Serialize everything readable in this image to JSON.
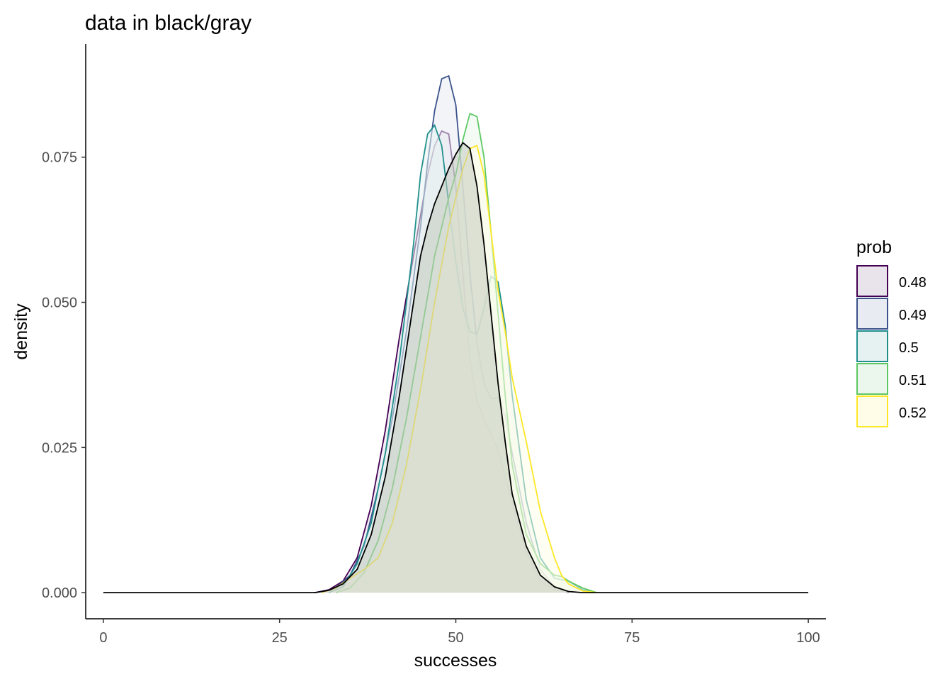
{
  "chart_data": {
    "type": "area",
    "title": "data in black/gray",
    "xlabel": "successes",
    "ylabel": "density",
    "xlim": [
      -2.5,
      102.5
    ],
    "ylim": [
      -0.0045,
      0.0945
    ],
    "x_ticks": [
      0,
      25,
      50,
      75,
      100
    ],
    "x_tick_labels": [
      "0",
      "25",
      "50",
      "75",
      "100"
    ],
    "y_ticks": [
      0,
      0.025,
      0.05,
      0.075
    ],
    "y_tick_labels": [
      "0.000",
      "0.025",
      "0.050",
      "0.075"
    ],
    "grid": false,
    "legend": {
      "title": "prob",
      "placement": "right",
      "entries": [
        "0.48",
        "0.49",
        "0.5",
        "0.51",
        "0.52"
      ]
    },
    "series": [
      {
        "name": "0.48",
        "color": "#440154",
        "fill": "#e9e4ec",
        "points": [
          [
            30,
            0
          ],
          [
            32,
            0.0005
          ],
          [
            34,
            0.002
          ],
          [
            36,
            0.006
          ],
          [
            38,
            0.015
          ],
          [
            40,
            0.028
          ],
          [
            42,
            0.044
          ],
          [
            44,
            0.058
          ],
          [
            46,
            0.072
          ],
          [
            47,
            0.077
          ],
          [
            48,
            0.0795
          ],
          [
            49,
            0.079
          ],
          [
            50,
            0.07
          ],
          [
            51,
            0.055
          ],
          [
            52,
            0.04
          ],
          [
            53,
            0.033
          ],
          [
            54,
            0.03
          ],
          [
            56,
            0.0245
          ],
          [
            58,
            0.0155
          ],
          [
            60,
            0.007
          ],
          [
            62,
            0.002
          ],
          [
            64,
            0.0005
          ],
          [
            66,
            0
          ]
        ]
      },
      {
        "name": "0.49",
        "color": "#3b528b",
        "fill": "#e8ebf2",
        "points": [
          [
            31,
            0
          ],
          [
            33,
            0.0008
          ],
          [
            35,
            0.003
          ],
          [
            37,
            0.008
          ],
          [
            39,
            0.018
          ],
          [
            41,
            0.03
          ],
          [
            43,
            0.045
          ],
          [
            45,
            0.063
          ],
          [
            46,
            0.074
          ],
          [
            47,
            0.083
          ],
          [
            48,
            0.0885
          ],
          [
            49,
            0.089
          ],
          [
            50,
            0.084
          ],
          [
            51,
            0.07
          ],
          [
            52,
            0.055
          ],
          [
            53,
            0.043
          ],
          [
            54,
            0.036
          ],
          [
            55,
            0.0335
          ],
          [
            56,
            0.0335
          ],
          [
            57,
            0.0305
          ],
          [
            58,
            0.024
          ],
          [
            60,
            0.012
          ],
          [
            62,
            0.004
          ],
          [
            64,
            0.001
          ],
          [
            66,
            0
          ]
        ]
      },
      {
        "name": "0.5",
        "color": "#21908d",
        "fill": "#e6f2f1",
        "points": [
          [
            32,
            0
          ],
          [
            34,
            0.001
          ],
          [
            36,
            0.005
          ],
          [
            38,
            0.012
          ],
          [
            40,
            0.024
          ],
          [
            42,
            0.04
          ],
          [
            44,
            0.06
          ],
          [
            45,
            0.072
          ],
          [
            46,
            0.079
          ],
          [
            47,
            0.0805
          ],
          [
            48,
            0.077
          ],
          [
            49,
            0.067
          ],
          [
            50,
            0.057
          ],
          [
            51,
            0.049
          ],
          [
            52,
            0.045
          ],
          [
            53,
            0.0445
          ],
          [
            54,
            0.049
          ],
          [
            55,
            0.0545
          ],
          [
            56,
            0.0535
          ],
          [
            57,
            0.046
          ],
          [
            58,
            0.034
          ],
          [
            60,
            0.016
          ],
          [
            62,
            0.006
          ],
          [
            64,
            0.0025
          ],
          [
            66,
            0.002
          ],
          [
            68,
            0.0005
          ],
          [
            70,
            0
          ]
        ]
      },
      {
        "name": "0.51",
        "color": "#5dc863",
        "fill": "#ebf7ec",
        "points": [
          [
            33,
            0
          ],
          [
            35,
            0.0008
          ],
          [
            37,
            0.0035
          ],
          [
            39,
            0.009
          ],
          [
            41,
            0.018
          ],
          [
            43,
            0.03
          ],
          [
            45,
            0.044
          ],
          [
            47,
            0.058
          ],
          [
            49,
            0.068
          ],
          [
            50,
            0.072
          ],
          [
            51,
            0.078
          ],
          [
            52,
            0.0825
          ],
          [
            53,
            0.082
          ],
          [
            54,
            0.075
          ],
          [
            55,
            0.062
          ],
          [
            56,
            0.048
          ],
          [
            57,
            0.034
          ],
          [
            58,
            0.022
          ],
          [
            60,
            0.01
          ],
          [
            62,
            0.005
          ],
          [
            64,
            0.003
          ],
          [
            65,
            0.0028
          ],
          [
            66,
            0.002
          ],
          [
            68,
            0.0008
          ],
          [
            70,
            0
          ]
        ]
      },
      {
        "name": "0.52",
        "color": "#fde725",
        "fill": "#fffde8",
        "points": [
          [
            31,
            0
          ],
          [
            33,
            0.0008
          ],
          [
            35,
            0.0025
          ],
          [
            37,
            0.004
          ],
          [
            39,
            0.006
          ],
          [
            41,
            0.012
          ],
          [
            43,
            0.022
          ],
          [
            45,
            0.035
          ],
          [
            47,
            0.05
          ],
          [
            49,
            0.063
          ],
          [
            51,
            0.073
          ],
          [
            52,
            0.0765
          ],
          [
            53,
            0.077
          ],
          [
            54,
            0.072
          ],
          [
            55,
            0.062
          ],
          [
            56,
            0.052
          ],
          [
            57,
            0.045
          ],
          [
            58,
            0.037
          ],
          [
            60,
            0.026
          ],
          [
            62,
            0.014
          ],
          [
            64,
            0.006
          ],
          [
            65,
            0.003
          ],
          [
            66,
            0.0015
          ],
          [
            68,
            0.0003
          ],
          [
            70,
            0
          ]
        ]
      },
      {
        "name": "",
        "color": "#000000",
        "fill": "#c2cbbd",
        "points": [
          [
            0,
            0
          ],
          [
            30,
            0
          ],
          [
            32,
            0.0004
          ],
          [
            34,
            0.0015
          ],
          [
            36,
            0.004
          ],
          [
            38,
            0.01
          ],
          [
            40,
            0.02
          ],
          [
            42,
            0.034
          ],
          [
            44,
            0.05
          ],
          [
            45,
            0.058
          ],
          [
            46,
            0.063
          ],
          [
            47,
            0.067
          ],
          [
            48,
            0.07
          ],
          [
            49,
            0.073
          ],
          [
            50,
            0.0755
          ],
          [
            51,
            0.0775
          ],
          [
            52,
            0.0765
          ],
          [
            53,
            0.07
          ],
          [
            54,
            0.06
          ],
          [
            55,
            0.048
          ],
          [
            56,
            0.036
          ],
          [
            57,
            0.026
          ],
          [
            58,
            0.017
          ],
          [
            60,
            0.008
          ],
          [
            62,
            0.003
          ],
          [
            64,
            0.001
          ],
          [
            66,
            0.0002
          ],
          [
            68,
            0
          ],
          [
            100,
            0
          ]
        ]
      }
    ]
  }
}
